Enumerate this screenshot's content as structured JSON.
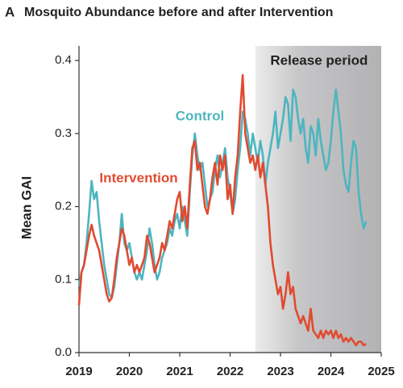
{
  "chart_data": {
    "type": "line",
    "panel_label": "A",
    "title": "Mosquito Abundance before and after Intervention",
    "y_label": "Mean GAI",
    "xlim": [
      2019,
      2025
    ],
    "xticks": [
      2019,
      2020,
      2021,
      2022,
      2023,
      2024,
      2025
    ],
    "ylim": [
      0,
      0.42
    ],
    "yticks": [
      {
        "value": 0,
        "label": "0.0"
      },
      0.1,
      0.2,
      0.3,
      0.4
    ],
    "shaded_region": {
      "label": "Release period",
      "xlim": [
        2022.5,
        2025
      ]
    },
    "x": [
      2019.0,
      2019.05,
      2019.1,
      2019.15,
      2019.2,
      2019.25,
      2019.3,
      2019.35,
      2019.4,
      2019.45,
      2019.5,
      2019.55,
      2019.6,
      2019.65,
      2019.7,
      2019.75,
      2019.8,
      2019.85,
      2019.9,
      2019.95,
      2020.0,
      2020.05,
      2020.1,
      2020.15,
      2020.2,
      2020.25,
      2020.3,
      2020.35,
      2020.4,
      2020.45,
      2020.5,
      2020.55,
      2020.6,
      2020.65,
      2020.7,
      2020.75,
      2020.8,
      2020.85,
      2020.9,
      2020.95,
      2021.0,
      2021.05,
      2021.1,
      2021.15,
      2021.2,
      2021.25,
      2021.3,
      2021.35,
      2021.4,
      2021.45,
      2021.5,
      2021.55,
      2021.6,
      2021.65,
      2021.7,
      2021.75,
      2021.8,
      2021.85,
      2021.9,
      2021.95,
      2022.0,
      2022.05,
      2022.1,
      2022.15,
      2022.2,
      2022.25,
      2022.3,
      2022.35,
      2022.4,
      2022.45,
      2022.5,
      2022.55,
      2022.6,
      2022.65,
      2022.7,
      2022.75,
      2022.8,
      2022.85,
      2022.9,
      2022.95,
      2023.0,
      2023.05,
      2023.1,
      2023.15,
      2023.2,
      2023.25,
      2023.3,
      2023.35,
      2023.4,
      2023.45,
      2023.5,
      2023.55,
      2023.6,
      2023.65,
      2023.7,
      2023.75,
      2023.8,
      2023.85,
      2023.9,
      2023.95,
      2024.0,
      2024.05,
      2024.1,
      2024.15,
      2024.2,
      2024.25,
      2024.3,
      2024.35,
      2024.4,
      2024.45,
      2024.5,
      2024.55,
      2024.6,
      2024.65,
      2024.7
    ],
    "series": [
      {
        "name": "Control",
        "color": "#4db5bf",
        "values": [
          0.09,
          0.11,
          0.12,
          0.15,
          0.19,
          0.235,
          0.21,
          0.22,
          0.18,
          0.15,
          0.12,
          0.1,
          0.08,
          0.075,
          0.09,
          0.12,
          0.15,
          0.19,
          0.15,
          0.14,
          0.15,
          0.13,
          0.11,
          0.1,
          0.11,
          0.1,
          0.12,
          0.14,
          0.17,
          0.15,
          0.12,
          0.1,
          0.11,
          0.13,
          0.14,
          0.15,
          0.17,
          0.16,
          0.18,
          0.19,
          0.17,
          0.2,
          0.18,
          0.16,
          0.22,
          0.27,
          0.3,
          0.27,
          0.25,
          0.26,
          0.23,
          0.2,
          0.21,
          0.22,
          0.25,
          0.27,
          0.24,
          0.26,
          0.28,
          0.24,
          0.22,
          0.19,
          0.21,
          0.25,
          0.28,
          0.33,
          0.32,
          0.3,
          0.27,
          0.3,
          0.28,
          0.26,
          0.29,
          0.27,
          0.23,
          0.26,
          0.28,
          0.3,
          0.33,
          0.28,
          0.3,
          0.32,
          0.35,
          0.34,
          0.29,
          0.36,
          0.35,
          0.32,
          0.3,
          0.32,
          0.28,
          0.26,
          0.31,
          0.3,
          0.27,
          0.32,
          0.29,
          0.27,
          0.25,
          0.26,
          0.29,
          0.33,
          0.36,
          0.33,
          0.3,
          0.25,
          0.23,
          0.22,
          0.26,
          0.29,
          0.28,
          0.22,
          0.19,
          0.17,
          0.18
        ]
      },
      {
        "name": "Intervention",
        "color": "#e14a30",
        "values": [
          0.065,
          0.11,
          0.12,
          0.14,
          0.16,
          0.175,
          0.16,
          0.15,
          0.14,
          0.12,
          0.1,
          0.08,
          0.07,
          0.075,
          0.1,
          0.13,
          0.15,
          0.17,
          0.16,
          0.14,
          0.12,
          0.13,
          0.11,
          0.12,
          0.11,
          0.12,
          0.13,
          0.16,
          0.15,
          0.13,
          0.11,
          0.12,
          0.13,
          0.15,
          0.14,
          0.16,
          0.18,
          0.17,
          0.19,
          0.21,
          0.22,
          0.18,
          0.2,
          0.17,
          0.23,
          0.28,
          0.29,
          0.25,
          0.26,
          0.23,
          0.2,
          0.19,
          0.21,
          0.24,
          0.26,
          0.23,
          0.27,
          0.25,
          0.27,
          0.21,
          0.23,
          0.19,
          0.24,
          0.27,
          0.33,
          0.38,
          0.3,
          0.28,
          0.26,
          0.27,
          0.25,
          0.27,
          0.24,
          0.26,
          0.23,
          0.2,
          0.15,
          0.12,
          0.1,
          0.08,
          0.09,
          0.06,
          0.08,
          0.11,
          0.08,
          0.09,
          0.06,
          0.05,
          0.04,
          0.05,
          0.04,
          0.03,
          0.06,
          0.03,
          0.025,
          0.02,
          0.03,
          0.02,
          0.03,
          0.025,
          0.03,
          0.02,
          0.03,
          0.02,
          0.025,
          0.015,
          0.02,
          0.015,
          0.02,
          0.015,
          0.01,
          0.015,
          0.015,
          0.01,
          0.012
        ]
      }
    ]
  }
}
